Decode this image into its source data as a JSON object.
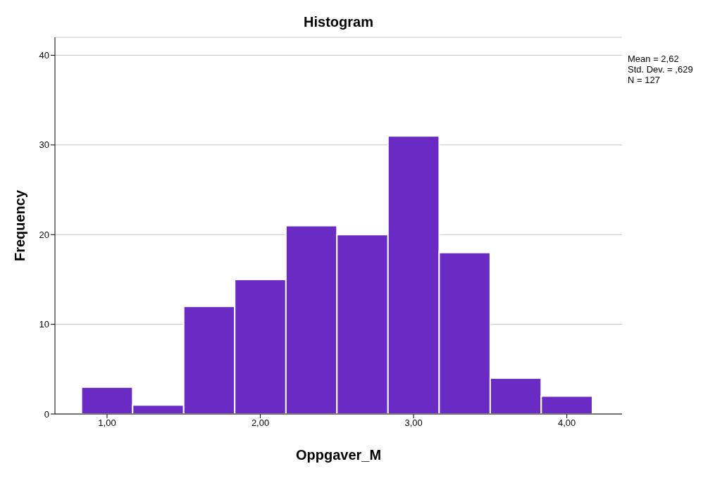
{
  "chart_data": {
    "type": "histogram",
    "title": "Histogram",
    "xlabel": "Oppgaver_M",
    "ylabel": "Frequency",
    "bins": [
      0.833,
      1.167,
      1.5,
      1.833,
      2.167,
      2.5,
      2.833,
      3.167,
      3.5,
      3.833,
      4.167
    ],
    "values": [
      3,
      1,
      12,
      15,
      21,
      20,
      31,
      18,
      4,
      2
    ],
    "color": "#6a2bc4",
    "xlim": [
      0.66,
      4.36
    ],
    "xticks": [
      {
        "value": 1,
        "label": "1,00"
      },
      {
        "value": 2,
        "label": "2,00"
      },
      {
        "value": 3,
        "label": "3,00"
      },
      {
        "value": 4,
        "label": "4,00"
      }
    ],
    "ylim": [
      0,
      42
    ],
    "yticks": [
      0,
      10,
      20,
      30,
      40
    ],
    "grid": "y",
    "annotations": [
      "Mean = 2,62",
      "Std. Dev. = ,629",
      "N = 127"
    ]
  }
}
